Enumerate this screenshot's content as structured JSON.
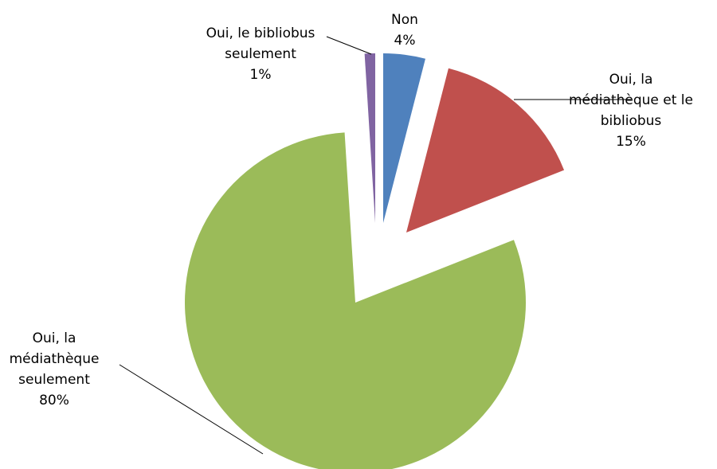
{
  "chart_data": {
    "type": "pie",
    "title": "",
    "exploded": true,
    "start": "top, clockwise",
    "slices": [
      {
        "name": "Non",
        "label_lines": [
          "Non"
        ],
        "value": 4,
        "pct_label": "4%",
        "color": "#4f81bd"
      },
      {
        "name": "Oui, la médiathèque et le bibliobus",
        "label_lines": [
          "Oui, la",
          "médiathèque et le",
          "bibliobus"
        ],
        "value": 15,
        "pct_label": "15%",
        "color": "#c0504d"
      },
      {
        "name": "Oui, la médiathèque seulement",
        "label_lines": [
          "Oui, la",
          "médiathèque",
          "seulement"
        ],
        "value": 80,
        "pct_label": "80%",
        "color": "#9bbb59"
      },
      {
        "name": "Oui, le bibliobus seulement",
        "label_lines": [
          "Oui, le bibliobus",
          "seulement"
        ],
        "value": 1,
        "pct_label": "1%",
        "color": "#8064a2"
      }
    ]
  }
}
